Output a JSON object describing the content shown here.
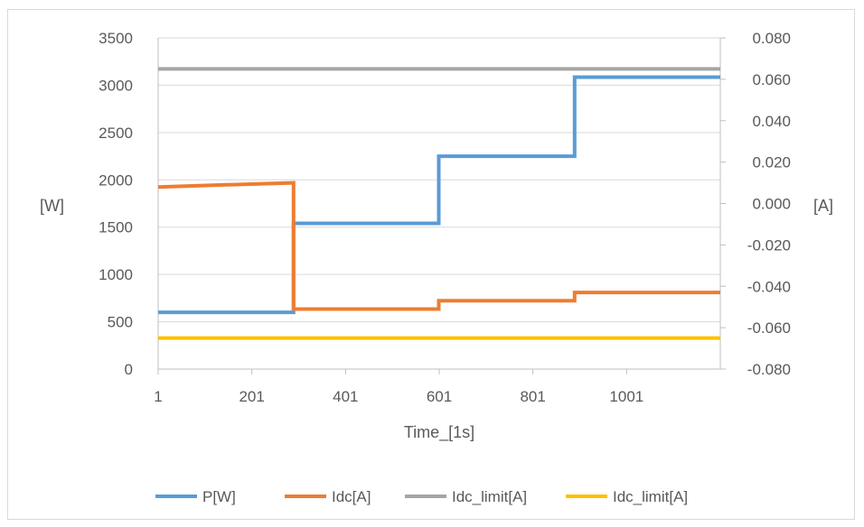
{
  "chart_data": {
    "type": "line",
    "xlabel": "Time_[1s]",
    "ylabel_left": "[W]",
    "ylabel_right": "[A]",
    "x_ticks": [
      "1",
      "201",
      "401",
      "601",
      "801",
      "1001"
    ],
    "x_range": [
      1,
      1201
    ],
    "y_left_range": [
      0,
      3500
    ],
    "y_left_ticks": [
      "0",
      "500",
      "1000",
      "1500",
      "2000",
      "2500",
      "3000",
      "3500"
    ],
    "y_right_range": [
      -0.08,
      0.08
    ],
    "y_right_ticks": [
      "-0.080",
      "-0.060",
      "-0.040",
      "-0.020",
      "0.000",
      "0.020",
      "0.040",
      "0.060",
      "0.080"
    ],
    "grid": "horizontal",
    "legend_position": "bottom",
    "series": [
      {
        "name": "P[W]",
        "axis": "left",
        "color": "#5b9bd5",
        "steps": [
          [
            1,
            600
          ],
          [
            290,
            600
          ],
          [
            290,
            1540
          ],
          [
            600,
            1540
          ],
          [
            600,
            2250
          ],
          [
            890,
            2250
          ],
          [
            890,
            3085
          ],
          [
            1201,
            3085
          ]
        ]
      },
      {
        "name": "Idc[A]",
        "axis": "right",
        "color": "#ed7d31",
        "steps": [
          [
            1,
            0.008
          ],
          [
            140,
            0.009
          ],
          [
            290,
            0.01
          ],
          [
            290,
            -0.051
          ],
          [
            600,
            -0.051
          ],
          [
            600,
            -0.047
          ],
          [
            890,
            -0.047
          ],
          [
            890,
            -0.043
          ],
          [
            1201,
            -0.043
          ]
        ]
      },
      {
        "name": "Idc_limit[A]",
        "axis": "right",
        "color": "#a5a5a5",
        "steps": [
          [
            1,
            0.065
          ],
          [
            1201,
            0.065
          ]
        ]
      },
      {
        "name": "Idc_limit[A]",
        "axis": "right",
        "color": "#ffc000",
        "steps": [
          [
            1,
            -0.065
          ],
          [
            1201,
            -0.065
          ]
        ]
      }
    ]
  }
}
